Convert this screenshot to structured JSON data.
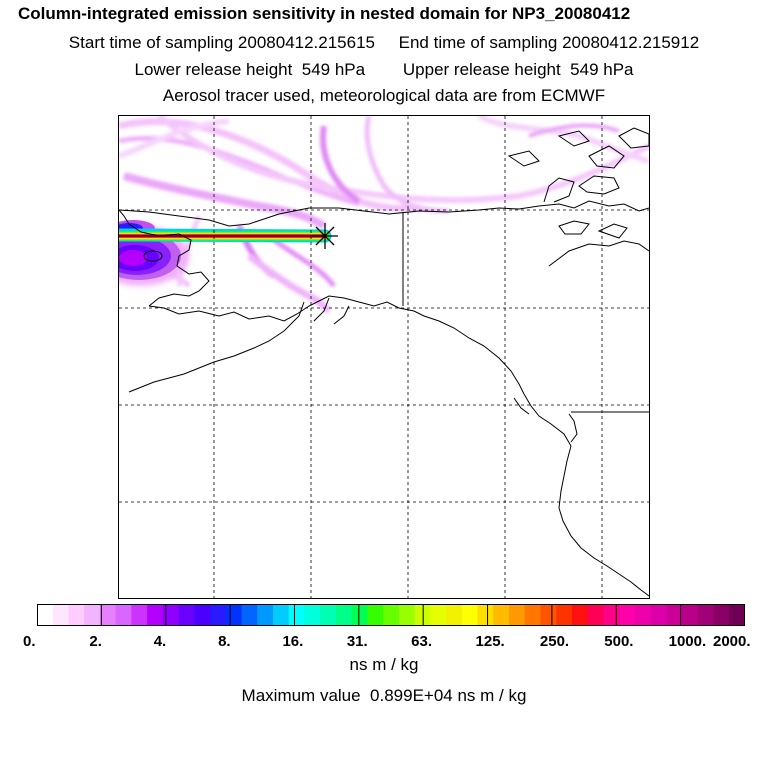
{
  "titles": {
    "line1": "Column-integrated emission sensitivity in nested domain for NP3_20080412",
    "line2": "Start time of sampling 20080412.215615     End time of sampling 20080412.215912",
    "line3": "Lower release height  549 hPa        Upper release height  549 hPa",
    "line4": "Aerosol tracer used, meteorological data are from ECMWF"
  },
  "colorbar": {
    "tick_labels": [
      "0.",
      "2.",
      "4.",
      "8.",
      "16.",
      "31.",
      "63.",
      "125.",
      "250.",
      "500.",
      "1000.",
      "2000."
    ],
    "colors": [
      "#ffffff",
      "#ffe6ff",
      "#ffccff",
      "#f2b3ff",
      "#e680ff",
      "#d966ff",
      "#cc33ff",
      "#b300ff",
      "#8f00ff",
      "#6a00ff",
      "#4b00ff",
      "#2a1aff",
      "#0033ff",
      "#0066ff",
      "#0099ff",
      "#00ccff",
      "#00ffff",
      "#00ffdd",
      "#00ffb3",
      "#00ff88",
      "#00ff55",
      "#33ff00",
      "#66ff00",
      "#99ff00",
      "#ccff00",
      "#e6ff00",
      "#f2f200",
      "#ffff00",
      "#ffdd00",
      "#ffbb00",
      "#ff9900",
      "#ff7700",
      "#ff5500",
      "#ff3300",
      "#ff1111",
      "#ff0055",
      "#ff0088",
      "#ff00aa",
      "#ee00aa",
      "#dd00aa",
      "#cc0099",
      "#b80088",
      "#a00078",
      "#880066",
      "#700055"
    ],
    "unit": "ns m / kg"
  },
  "max_value_text": "Maximum value  0.899E+04 ns m / kg",
  "map": {
    "coastline_color": "#000000",
    "grid_style": "dashed",
    "release_marker": "star"
  }
}
